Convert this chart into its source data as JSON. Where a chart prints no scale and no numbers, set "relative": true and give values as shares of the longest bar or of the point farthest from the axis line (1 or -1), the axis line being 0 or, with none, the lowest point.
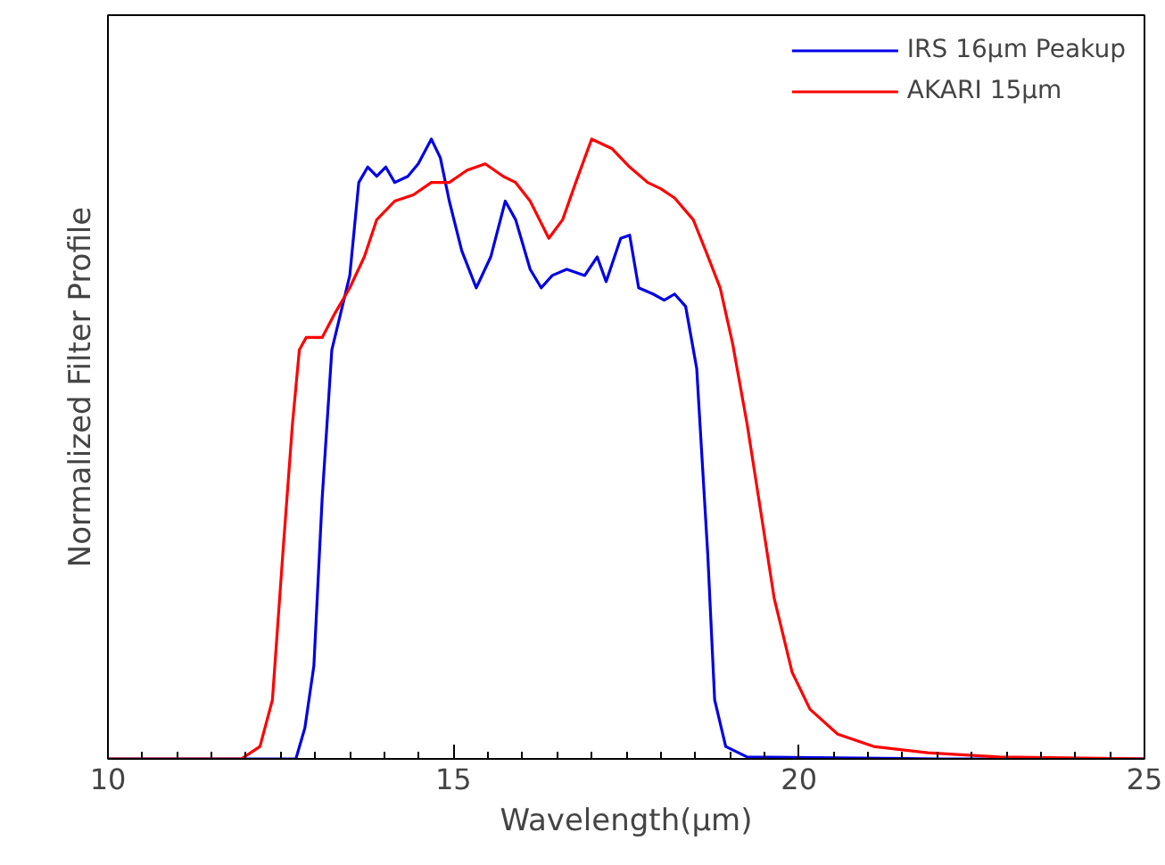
{
  "chart_data": {
    "type": "line",
    "xlabel": "Wavelength(μm)",
    "ylabel": "Normalized Filter Profile",
    "relative": true,
    "xlim": [
      10,
      25
    ],
    "xticks": [
      10,
      15,
      20,
      25
    ],
    "grid": false,
    "legend": "top right",
    "line_style": "solid",
    "series": [
      {
        "name": "IRS 16μm Peakup",
        "color": "#0000e6",
        "x": [
          10,
          12.0,
          12.72,
          12.85,
          12.98,
          13.1,
          13.24,
          13.37,
          13.5,
          13.63,
          13.76,
          13.89,
          14.02,
          14.15,
          14.34,
          14.49,
          14.68,
          14.81,
          14.94,
          15.12,
          15.33,
          15.54,
          15.75,
          15.9,
          16.11,
          16.27,
          16.43,
          16.64,
          16.9,
          17.08,
          17.21,
          17.42,
          17.55,
          17.68,
          17.89,
          18.05,
          18.2,
          18.36,
          18.52,
          18.68,
          18.78,
          18.94,
          19.25,
          22,
          25
        ],
        "values": [
          0,
          0,
          0,
          0.05,
          0.15,
          0.42,
          0.66,
          0.72,
          0.78,
          0.93,
          0.955,
          0.94,
          0.955,
          0.93,
          0.94,
          0.96,
          1.0,
          0.97,
          0.9,
          0.82,
          0.76,
          0.81,
          0.9,
          0.87,
          0.79,
          0.76,
          0.78,
          0.79,
          0.78,
          0.81,
          0.77,
          0.84,
          0.845,
          0.76,
          0.75,
          0.74,
          0.75,
          0.73,
          0.63,
          0.33,
          0.095,
          0.02,
          0.003,
          0,
          0
        ]
      },
      {
        "name": "AKARI 15μm",
        "color": "#ff0000",
        "x": [
          10,
          11.5,
          11.93,
          12.2,
          12.38,
          12.53,
          12.67,
          12.77,
          12.87,
          13.1,
          13.29,
          13.5,
          13.71,
          13.89,
          14.15,
          14.42,
          14.68,
          14.94,
          15.2,
          15.46,
          15.72,
          15.9,
          16.11,
          16.38,
          16.58,
          16.77,
          17.0,
          17.29,
          17.55,
          17.81,
          18.0,
          18.2,
          18.47,
          18.65,
          18.86,
          19.04,
          19.25,
          19.46,
          19.64,
          19.9,
          20.16,
          20.56,
          21.08,
          21.86,
          22.9,
          25
        ],
        "values": [
          0,
          0,
          0,
          0.02,
          0.095,
          0.33,
          0.54,
          0.66,
          0.68,
          0.68,
          0.72,
          0.76,
          0.81,
          0.87,
          0.9,
          0.91,
          0.93,
          0.93,
          0.95,
          0.96,
          0.94,
          0.93,
          0.9,
          0.84,
          0.87,
          0.93,
          1.0,
          0.985,
          0.955,
          0.93,
          0.92,
          0.905,
          0.87,
          0.82,
          0.76,
          0.67,
          0.54,
          0.39,
          0.26,
          0.14,
          0.08,
          0.04,
          0.02,
          0.01,
          0.003,
          0
        ]
      }
    ]
  }
}
